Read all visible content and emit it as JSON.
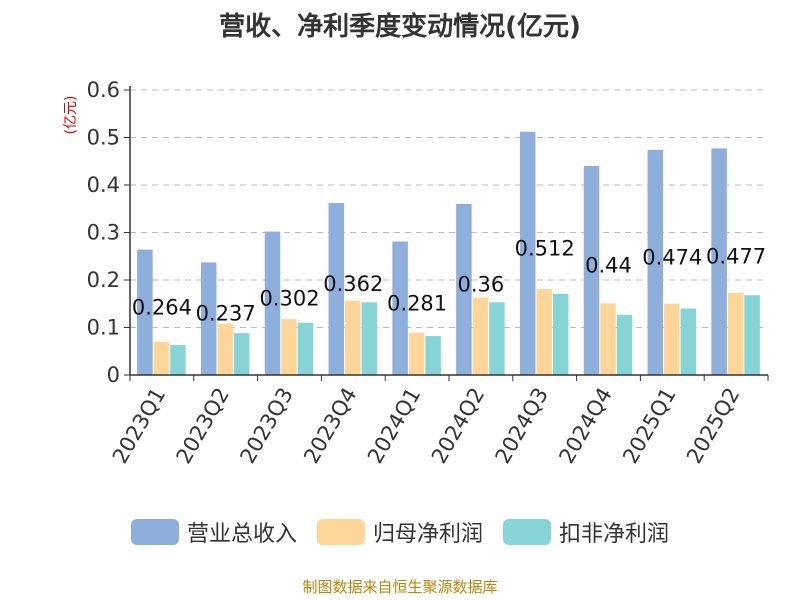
{
  "title": "营收、净利季度变动情况(亿元)",
  "y_unit": "(亿元)",
  "source": "制图数据来自恒生聚源数据库",
  "colors": {
    "revenue": "#8eaedb",
    "net_profit": "#ffd699",
    "deducted_profit": "#86d4d6",
    "grid": "#bbbbbb",
    "axis": "#333333"
  },
  "chart_data": {
    "type": "bar",
    "title": "营收、净利季度变动情况(亿元)",
    "ylabel": "(亿元)",
    "xlabel": "",
    "ylim": [
      0,
      0.6
    ],
    "yticks": [
      0,
      0.1,
      0.2,
      0.3,
      0.4,
      0.5,
      0.6
    ],
    "ytick_labels": [
      "0",
      "0.1",
      "0.2",
      "0.3",
      "0.4",
      "0.5",
      "0.6"
    ],
    "grid": true,
    "legend": "bottom",
    "categories": [
      "2023Q1",
      "2023Q2",
      "2023Q3",
      "2023Q4",
      "2024Q1",
      "2024Q2",
      "2024Q3",
      "2024Q4",
      "2025Q1",
      "2025Q2"
    ],
    "series": [
      {
        "name": "营业总收入",
        "values": [
          0.264,
          0.237,
          0.302,
          0.362,
          0.281,
          0.36,
          0.512,
          0.44,
          0.474,
          0.477
        ],
        "labels": [
          "0.264",
          "0.237",
          "0.302",
          "0.362",
          "0.281",
          "0.36",
          "0.512",
          "0.44",
          "0.474",
          "0.477"
        ]
      },
      {
        "name": "归母净利润",
        "values": [
          0.07,
          0.108,
          0.118,
          0.157,
          0.089,
          0.163,
          0.181,
          0.151,
          0.15,
          0.173
        ]
      },
      {
        "name": "扣非净利润",
        "values": [
          0.063,
          0.088,
          0.11,
          0.153,
          0.082,
          0.153,
          0.171,
          0.127,
          0.14,
          0.168
        ]
      }
    ]
  }
}
